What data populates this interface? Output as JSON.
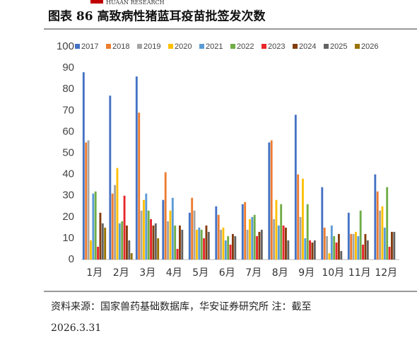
{
  "header": {
    "brand": "HUAAN RESEARCH"
  },
  "chart_data": {
    "type": "bar",
    "title": "图表 86 高致病性猪蓝耳疫苗批签发次数",
    "categories": [
      "1月",
      "2月",
      "3月",
      "4月",
      "5月",
      "6月",
      "7月",
      "8月",
      "9月",
      "10月",
      "11月",
      "12月"
    ],
    "series": [
      {
        "name": "2017",
        "color": "#4472c4",
        "values": [
          88,
          77,
          86,
          28,
          22,
          25,
          26,
          55,
          68,
          34,
          22,
          40
        ]
      },
      {
        "name": "2018",
        "color": "#ed7d31",
        "values": [
          55,
          31,
          69,
          41,
          29,
          21,
          27,
          56,
          40,
          15,
          12,
          32
        ]
      },
      {
        "name": "2019",
        "color": "#a5a5a5",
        "values": [
          56,
          35,
          23,
          18,
          23,
          14,
          14,
          19,
          20,
          11,
          12,
          23
        ]
      },
      {
        "name": "2020",
        "color": "#ffc000",
        "values": [
          9,
          43,
          28,
          23,
          14,
          15,
          19,
          28,
          38,
          3,
          13,
          25
        ]
      },
      {
        "name": "2021",
        "color": "#5b9bd5",
        "values": [
          31,
          17,
          31,
          29,
          15,
          9,
          20,
          16,
          10,
          16,
          11,
          15
        ]
      },
      {
        "name": "2022",
        "color": "#70ad47",
        "values": [
          32,
          18,
          23,
          16,
          14,
          11,
          21,
          26,
          26,
          11,
          23,
          34
        ]
      },
      {
        "name": "2023",
        "color": "#e8262b",
        "values": [
          6,
          30,
          19,
          5,
          10,
          7,
          11,
          16,
          9,
          8,
          7,
          6
        ]
      },
      {
        "name": "2024",
        "color": "#843c0c",
        "values": [
          22,
          16,
          16,
          16,
          16,
          12,
          13,
          15,
          8,
          12,
          12,
          13
        ]
      },
      {
        "name": "2025",
        "color": "#636363",
        "values": [
          17,
          9,
          17,
          14,
          13,
          11,
          14,
          9,
          9,
          4,
          9,
          13
        ]
      },
      {
        "name": "2026",
        "color": "#997300",
        "values": [
          15,
          3,
          10,
          null,
          null,
          null,
          null,
          null,
          null,
          null,
          null,
          null
        ]
      }
    ],
    "ylim": [
      0,
      100
    ],
    "yticks": [
      0,
      10,
      20,
      30,
      40,
      50,
      60,
      70,
      80,
      90,
      100
    ],
    "grid": false,
    "legend": "top"
  },
  "footer": {
    "lines": [
      "资料来源：国家兽药基础数据库，华安证券研究所 注：截至",
      "2026.3.31"
    ]
  }
}
